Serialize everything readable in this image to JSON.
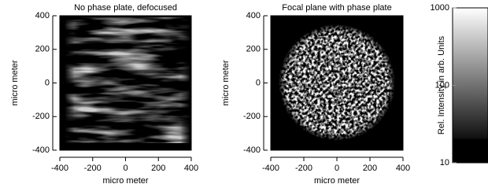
{
  "chart_data": [
    {
      "type": "image",
      "title": "No phase plate, defocused",
      "xlabel": "micro meter",
      "ylabel": "micro meter",
      "xlim": [
        -400,
        400
      ],
      "ylim": [
        -400,
        400
      ],
      "xticks": [
        -400,
        -200,
        0,
        200,
        400
      ],
      "yticks": [
        -400,
        -200,
        0,
        200,
        400
      ]
    },
    {
      "type": "image",
      "title": "Focal plane with phase plate",
      "xlabel": "micro meter",
      "ylabel": "micro meter",
      "xlim": [
        -400,
        400
      ],
      "ylim": [
        -400,
        400
      ],
      "xticks": [
        -400,
        -200,
        0,
        200,
        400
      ],
      "yticks": [
        -400,
        -200,
        0,
        200,
        400
      ]
    },
    {
      "type": "colorbar",
      "ylabel": "Rel. Intensity in arb. Units",
      "ylim": [
        10,
        1000
      ],
      "yticks": [
        10,
        100,
        1000
      ],
      "log": true
    }
  ]
}
